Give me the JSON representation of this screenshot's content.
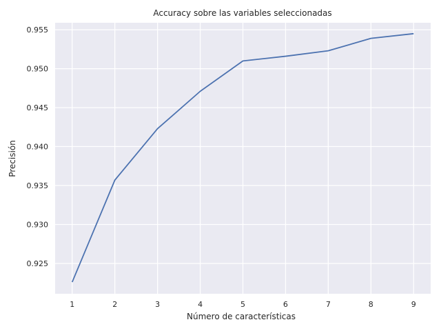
{
  "chart_data": {
    "type": "line",
    "title": "Accuracy sobre las variables seleccionadas",
    "xlabel": "Número de características",
    "ylabel": "Precisión",
    "x": [
      1,
      2,
      3,
      4,
      5,
      6,
      7,
      8,
      9
    ],
    "xticks": [
      "1",
      "2",
      "3",
      "4",
      "5",
      "6",
      "7",
      "8",
      "9"
    ],
    "yticks": [
      "0.925",
      "0.930",
      "0.935",
      "0.940",
      "0.945",
      "0.950",
      "0.955"
    ],
    "ytick_values": [
      0.925,
      0.93,
      0.935,
      0.94,
      0.945,
      0.95,
      0.955
    ],
    "xlim": [
      0.6,
      9.4
    ],
    "ylim": [
      0.9211,
      0.9559
    ],
    "series": [
      {
        "values": [
          0.9226,
          0.9357,
          0.9423,
          0.9471,
          0.951,
          0.9516,
          0.9523,
          0.9539,
          0.9545
        ],
        "color": "#4c72b0"
      }
    ],
    "grid": true,
    "background": "#eaeaf2",
    "grid_color": "#ffffff"
  }
}
